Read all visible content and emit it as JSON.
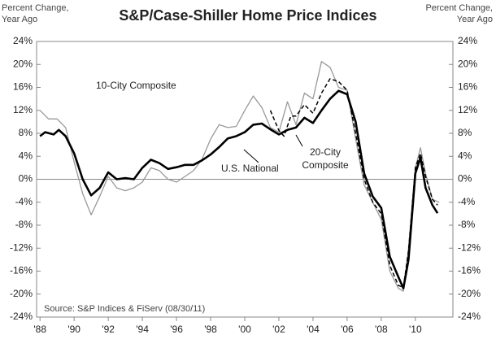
{
  "chart_data": {
    "type": "line",
    "title": "S&P/Case-Shiller Home Price Indices",
    "ylabel": [
      "Percent Change,",
      "Year Ago"
    ],
    "y2label": [
      "Percent Change,",
      "Year Ago"
    ],
    "source": "Source: S&P Indices & FiServ (08/30/11)",
    "annotations": [
      "10-City Composite",
      "U.S. National",
      "20-City",
      "Composite"
    ],
    "xlim": [
      1987.8,
      2012.2
    ],
    "xticks": [
      {
        "value": 1988,
        "label": "'88"
      },
      {
        "value": 1990,
        "label": "'90"
      },
      {
        "value": 1992,
        "label": "'92"
      },
      {
        "value": 1994,
        "label": "'94"
      },
      {
        "value": 1996,
        "label": "'96"
      },
      {
        "value": 1998,
        "label": "'98"
      },
      {
        "value": 2000,
        "label": "'00"
      },
      {
        "value": 2002,
        "label": "'02"
      },
      {
        "value": 2004,
        "label": "'04"
      },
      {
        "value": 2006,
        "label": "'06"
      },
      {
        "value": 2008,
        "label": "'08"
      },
      {
        "value": 2010,
        "label": "'10"
      }
    ],
    "ylim": [
      -24,
      24
    ],
    "yticks": [
      {
        "value": -24,
        "label": "-24%"
      },
      {
        "value": -20,
        "label": "-20%"
      },
      {
        "value": -16,
        "label": "-16%"
      },
      {
        "value": -12,
        "label": "-12%"
      },
      {
        "value": -8,
        "label": "-8%"
      },
      {
        "value": -4,
        "label": "-4%"
      },
      {
        "value": 0,
        "label": "0%"
      },
      {
        "value": 4,
        "label": "4%"
      },
      {
        "value": 8,
        "label": "8%"
      },
      {
        "value": 12,
        "label": "12%"
      },
      {
        "value": 16,
        "label": "16%"
      },
      {
        "value": 20,
        "label": "20%"
      },
      {
        "value": 24,
        "label": "24%"
      }
    ],
    "y2lim": [
      -24,
      24
    ],
    "y2ticks": [
      {
        "value": -24,
        "label": "-24%"
      },
      {
        "value": -20,
        "label": "-20%"
      },
      {
        "value": -16,
        "label": "-16%"
      },
      {
        "value": -12,
        "label": "-12%"
      },
      {
        "value": -8,
        "label": "-8%"
      },
      {
        "value": -4,
        "label": "-4%"
      },
      {
        "value": 0,
        "label": "0%"
      },
      {
        "value": 4,
        "label": "4%"
      },
      {
        "value": 8,
        "label": "8%"
      },
      {
        "value": 12,
        "label": "12%"
      },
      {
        "value": 16,
        "label": "16%"
      },
      {
        "value": 20,
        "label": "20%"
      },
      {
        "value": 24,
        "label": "24%"
      }
    ],
    "series": [
      {
        "name": "10-City Composite",
        "color": "#999999",
        "width": 1.3,
        "dash": false,
        "x": [
          1988,
          1988.5,
          1989,
          1989.5,
          1990,
          1990.5,
          1991,
          1991.5,
          1992,
          1992.5,
          1993,
          1993.5,
          1994,
          1994.5,
          1995,
          1995.5,
          1996,
          1996.5,
          1997,
          1997.5,
          1998,
          1998.5,
          1999,
          1999.5,
          2000,
          2000.5,
          2001,
          2001.5,
          2002,
          2002.5,
          2003,
          2003.5,
          2004,
          2004.5,
          2005,
          2005.5,
          2006,
          2006.5,
          2007,
          2007.5,
          2008,
          2008.5,
          2009,
          2009.3,
          2009.6,
          2010,
          2010.3,
          2010.6,
          2011,
          2011.4
        ],
        "values": [
          12,
          10.5,
          10.5,
          9,
          3,
          -2.5,
          -6.2,
          -3,
          0.5,
          -1.5,
          -2,
          -1.5,
          -0.5,
          2,
          1.5,
          0,
          -0.5,
          0.5,
          1.5,
          3.5,
          7,
          9.5,
          9,
          9.2,
          12,
          14.5,
          12.5,
          9,
          8.2,
          13.5,
          9.5,
          15,
          14,
          20.5,
          19.5,
          16,
          15.5,
          7,
          -1,
          -4,
          -7,
          -16,
          -19,
          -19.5,
          -12,
          2,
          5.5,
          1,
          -3.5,
          -4
        ]
      },
      {
        "name": "20-City Composite",
        "color": "#000000",
        "width": 1.5,
        "dash": true,
        "x": [
          2001.5,
          2002,
          2002.3,
          2002.7,
          2003,
          2003.5,
          2004,
          2004.5,
          2005,
          2005.5,
          2006,
          2006.5,
          2007,
          2007.5,
          2008,
          2008.5,
          2009,
          2009.3,
          2009.6,
          2010,
          2010.3,
          2010.6,
          2011,
          2011.3
        ],
        "values": [
          12,
          8.5,
          7.5,
          11,
          11,
          13,
          11.5,
          15,
          17.5,
          17,
          15.5,
          8,
          0,
          -4,
          -6,
          -15,
          -18.5,
          -18.8,
          -12.5,
          2,
          4.5,
          0.5,
          -3.5,
          -4.5
        ]
      },
      {
        "name": "U.S. National",
        "color": "#000000",
        "width": 2.6,
        "dash": false,
        "x": [
          1988,
          1988.3,
          1988.8,
          1989.1,
          1989.5,
          1990,
          1990.5,
          1991,
          1991.5,
          1992,
          1992.5,
          1993,
          1993.5,
          1994,
          1994.5,
          1995,
          1995.5,
          1996,
          1996.5,
          1997,
          1997.5,
          1998,
          1998.5,
          1999,
          1999.5,
          2000,
          2000.5,
          2001,
          2001.5,
          2002,
          2002.5,
          2003,
          2003.5,
          2004,
          2004.5,
          2005,
          2005.5,
          2006,
          2006.5,
          2007,
          2007.5,
          2008,
          2008.5,
          2009,
          2009.3,
          2009.6,
          2010,
          2010.3,
          2010.6,
          2011,
          2011.3
        ],
        "values": [
          7.5,
          8.2,
          7.8,
          8.6,
          7.5,
          4.5,
          0,
          -2.8,
          -1.5,
          1.2,
          0,
          0.2,
          0,
          2,
          3.4,
          2.8,
          1.8,
          2.1,
          2.5,
          2.5,
          3.3,
          4.3,
          5.6,
          7.1,
          7.5,
          8.2,
          9.5,
          9.7,
          8.7,
          7.8,
          8.6,
          9,
          10.7,
          9.8,
          12,
          14,
          15.4,
          14.8,
          10,
          1,
          -3,
          -5,
          -13.5,
          -17,
          -19,
          -14,
          1,
          3.8,
          -1.5,
          -4.5,
          -5.9
        ]
      }
    ]
  }
}
